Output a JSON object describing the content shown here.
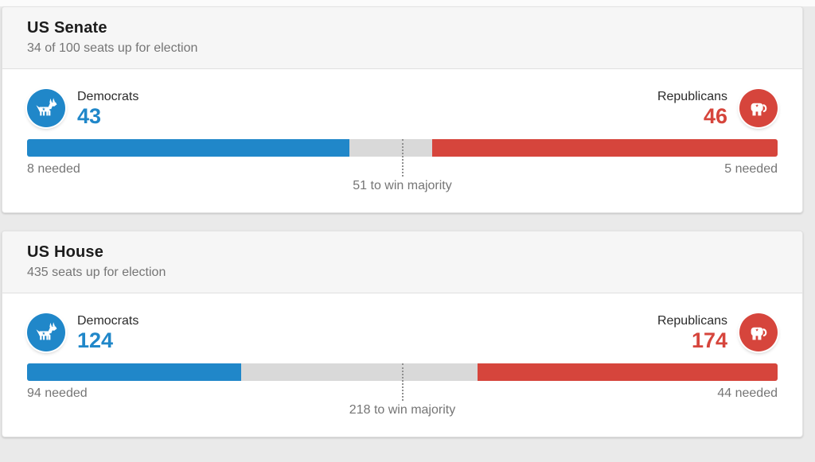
{
  "colors": {
    "dem": "#2087c9",
    "rep": "#d6453c",
    "bar_neutral": "#d9d9d9",
    "marker": "#8f8f8f"
  },
  "sections": [
    {
      "title": "US Senate",
      "subtitle": "34 of 100 seats up for election",
      "democrats": {
        "label": "Democrats",
        "count": "43",
        "needed": "8 needed",
        "pct": 43
      },
      "republicans": {
        "label": "Republicans",
        "count": "46",
        "needed": "5 needed",
        "pct": 46
      },
      "majority": {
        "label": "51 to win majority",
        "marker_pct": 50
      }
    },
    {
      "title": "US House",
      "subtitle": "435 seats up for election",
      "democrats": {
        "label": "Democrats",
        "count": "124",
        "needed": "94 needed",
        "pct": 28.5
      },
      "republicans": {
        "label": "Republicans",
        "count": "174",
        "needed": "44 needed",
        "pct": 40
      },
      "majority": {
        "label": "218 to win majority",
        "marker_pct": 50
      }
    }
  ],
  "chart_data": [
    {
      "type": "bar",
      "title": "US Senate",
      "subtitle": "34 of 100 seats up for election",
      "total_seats": 100,
      "majority_threshold": 51,
      "series": [
        {
          "name": "Democrats",
          "seats_won": 43,
          "seats_needed": 8,
          "color": "#2087c9"
        },
        {
          "name": "Republicans",
          "seats_won": 46,
          "seats_needed": 5,
          "color": "#d6453c"
        }
      ],
      "undecided_seats": 11,
      "annotations": [
        "8 needed",
        "5 needed",
        "51 to win majority"
      ]
    },
    {
      "type": "bar",
      "title": "US House",
      "subtitle": "435 seats up for election",
      "total_seats": 435,
      "majority_threshold": 218,
      "series": [
        {
          "name": "Democrats",
          "seats_won": 124,
          "seats_needed": 94,
          "color": "#2087c9"
        },
        {
          "name": "Republicans",
          "seats_won": 174,
          "seats_needed": 44,
          "color": "#d6453c"
        }
      ],
      "undecided_seats": 137,
      "annotations": [
        "94 needed",
        "44 needed",
        "218 to win majority"
      ]
    }
  ]
}
